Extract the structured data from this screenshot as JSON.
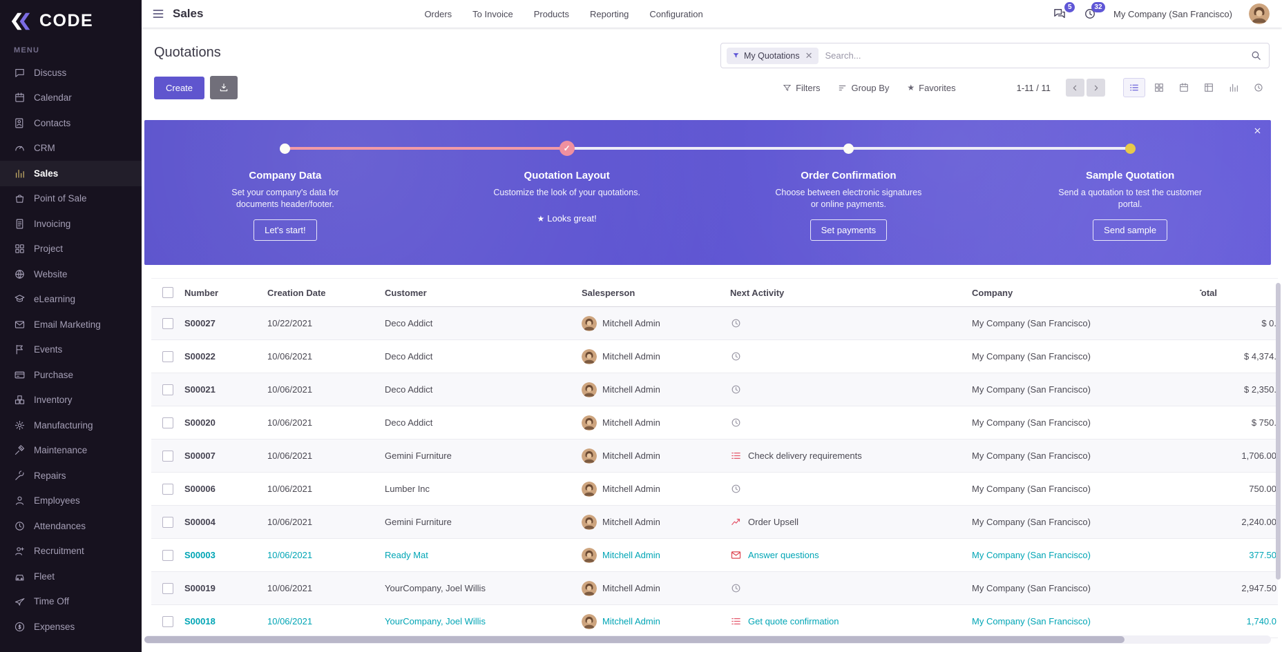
{
  "topbar": {
    "app_title": "Sales",
    "menu": [
      "Orders",
      "To Invoice",
      "Products",
      "Reporting",
      "Configuration"
    ],
    "messages_badge": "5",
    "activities_badge": "32",
    "company": "My Company (San Francisco)"
  },
  "sidebar": {
    "logo_text": "CODE",
    "menu_label": "MENU",
    "items": [
      {
        "label": "Discuss",
        "icon": "chat",
        "active": false
      },
      {
        "label": "Calendar",
        "icon": "calendar",
        "active": false
      },
      {
        "label": "Contacts",
        "icon": "contacts",
        "active": false
      },
      {
        "label": "CRM",
        "icon": "crm",
        "active": false
      },
      {
        "label": "Sales",
        "icon": "sales",
        "active": true
      },
      {
        "label": "Point of Sale",
        "icon": "pos",
        "active": false
      },
      {
        "label": "Invoicing",
        "icon": "invoicing",
        "active": false
      },
      {
        "label": "Project",
        "icon": "project",
        "active": false
      },
      {
        "label": "Website",
        "icon": "website",
        "active": false
      },
      {
        "label": "eLearning",
        "icon": "elearning",
        "active": false
      },
      {
        "label": "Email Marketing",
        "icon": "email",
        "active": false
      },
      {
        "label": "Events",
        "icon": "events",
        "active": false
      },
      {
        "label": "Purchase",
        "icon": "purchase",
        "active": false
      },
      {
        "label": "Inventory",
        "icon": "inventory",
        "active": false
      },
      {
        "label": "Manufacturing",
        "icon": "manufacturing",
        "active": false
      },
      {
        "label": "Maintenance",
        "icon": "maintenance",
        "active": false
      },
      {
        "label": "Repairs",
        "icon": "repairs",
        "active": false
      },
      {
        "label": "Employees",
        "icon": "employees",
        "active": false
      },
      {
        "label": "Attendances",
        "icon": "attendances",
        "active": false
      },
      {
        "label": "Recruitment",
        "icon": "recruitment",
        "active": false
      },
      {
        "label": "Fleet",
        "icon": "fleet",
        "active": false
      },
      {
        "label": "Time Off",
        "icon": "timeoff",
        "active": false
      },
      {
        "label": "Expenses",
        "icon": "expenses",
        "active": false
      }
    ]
  },
  "control_panel": {
    "title": "Quotations",
    "search": {
      "facet": "My Quotations",
      "placeholder": "Search..."
    },
    "create_label": "Create",
    "filters_label": "Filters",
    "group_by_label": "Group By",
    "favorites_label": "Favorites",
    "pager": "1-11 / 11",
    "views": [
      "list",
      "kanban",
      "calendar",
      "pivot",
      "graph",
      "activity"
    ],
    "active_view": "list"
  },
  "banner": {
    "colors": {
      "background": "#5b52d5",
      "progress_done": "#f19aa6",
      "progress_todo": "#edecf7",
      "dot_final": "#e7c94a",
      "accent": "#5f55ce",
      "teal": "#00a5b5"
    },
    "steps": [
      {
        "title": "Company Data",
        "description": "Set your company's data for documents header/footer.",
        "action": "Let's start!",
        "action_kind": "button",
        "dot": "plain"
      },
      {
        "title": "Quotation Layout",
        "description": "Customize the look of your quotations.",
        "action": "Looks great!",
        "action_kind": "star-text",
        "dot": "check"
      },
      {
        "title": "Order Confirmation",
        "description": "Choose between electronic signatures or online payments.",
        "action": "Set payments",
        "action_kind": "button",
        "dot": "plain"
      },
      {
        "title": "Sample Quotation",
        "description": "Send a quotation to test the customer portal.",
        "action": "Send sample",
        "action_kind": "button",
        "dot": "final"
      }
    ]
  },
  "table": {
    "columns": [
      "Number",
      "Creation Date",
      "Customer",
      "Salesperson",
      "Next Activity",
      "Company",
      "Total"
    ],
    "rows": [
      {
        "number": "S00027",
        "date": "10/22/2021",
        "customer": "Deco Addict",
        "salesperson": "Mitchell Admin",
        "activity_icon": "clock",
        "activity": "",
        "company": "My Company (San Francisco)",
        "total": "$ 0.",
        "highlight": false
      },
      {
        "number": "S00022",
        "date": "10/06/2021",
        "customer": "Deco Addict",
        "salesperson": "Mitchell Admin",
        "activity_icon": "clock",
        "activity": "",
        "company": "My Company (San Francisco)",
        "total": "$ 4,374.",
        "highlight": false
      },
      {
        "number": "S00021",
        "date": "10/06/2021",
        "customer": "Deco Addict",
        "salesperson": "Mitchell Admin",
        "activity_icon": "clock",
        "activity": "",
        "company": "My Company (San Francisco)",
        "total": "$ 2,350.",
        "highlight": false
      },
      {
        "number": "S00020",
        "date": "10/06/2021",
        "customer": "Deco Addict",
        "salesperson": "Mitchell Admin",
        "activity_icon": "clock",
        "activity": "",
        "company": "My Company (San Francisco)",
        "total": "$ 750.",
        "highlight": false
      },
      {
        "number": "S00007",
        "date": "10/06/2021",
        "customer": "Gemini Furniture",
        "salesperson": "Mitchell Admin",
        "activity_icon": "tasks",
        "activity": "Check delivery requirements",
        "company": "My Company (San Francisco)",
        "total": "1,706.00",
        "highlight": false
      },
      {
        "number": "S00006",
        "date": "10/06/2021",
        "customer": "Lumber Inc",
        "salesperson": "Mitchell Admin",
        "activity_icon": "clock",
        "activity": "",
        "company": "My Company (San Francisco)",
        "total": "750.00",
        "highlight": false
      },
      {
        "number": "S00004",
        "date": "10/06/2021",
        "customer": "Gemini Furniture",
        "salesperson": "Mitchell Admin",
        "activity_icon": "upsell",
        "activity": "Order Upsell",
        "company": "My Company (San Francisco)",
        "total": "2,240.00",
        "highlight": false
      },
      {
        "number": "S00003",
        "date": "10/06/2021",
        "customer": "Ready Mat",
        "salesperson": "Mitchell Admin",
        "activity_icon": "envelope",
        "activity": "Answer questions",
        "company": "My Company (San Francisco)",
        "total": "377.50",
        "highlight": true
      },
      {
        "number": "S00019",
        "date": "10/06/2021",
        "customer": "YourCompany, Joel Willis",
        "salesperson": "Mitchell Admin",
        "activity_icon": "clock",
        "activity": "",
        "company": "My Company (San Francisco)",
        "total": "2,947.50",
        "highlight": false
      },
      {
        "number": "S00018",
        "date": "10/06/2021",
        "customer": "YourCompany, Joel Willis",
        "salesperson": "Mitchell Admin",
        "activity_icon": "tasks",
        "activity": "Get quote confirmation",
        "company": "My Company (San Francisco)",
        "total": "1,740.0",
        "highlight": true
      }
    ]
  }
}
